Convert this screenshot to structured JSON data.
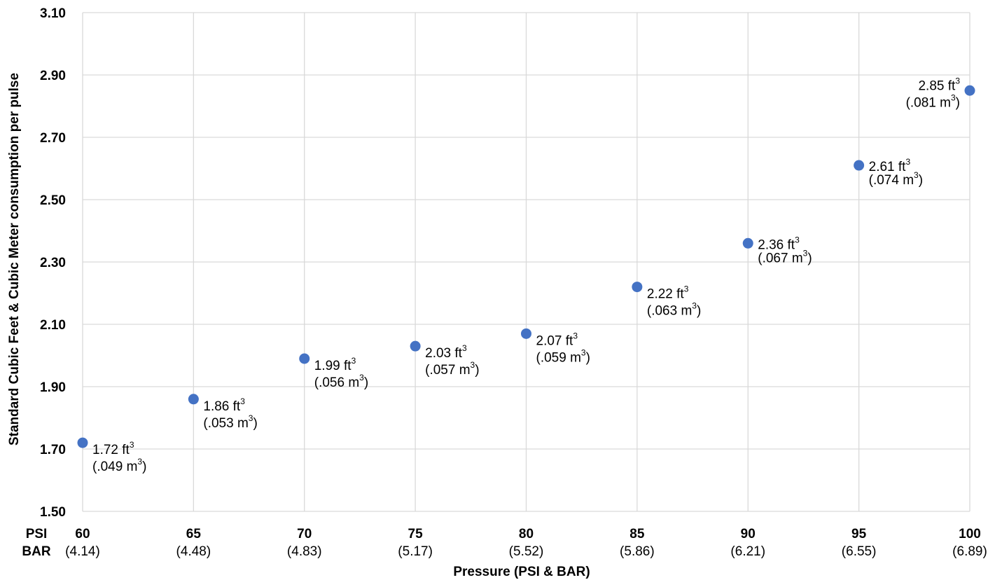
{
  "chart_data": {
    "type": "scatter",
    "xlabel": "Pressure (PSI & BAR)",
    "ylabel": "Standard Cubic Feet & Cubic Meter consumption per pulse",
    "ylim": [
      1.5,
      3.1
    ],
    "xlim": [
      60,
      100
    ],
    "grid": true,
    "marker_color": "#4472C4",
    "y_ticks": [
      "3.10",
      "2.90",
      "2.70",
      "2.50",
      "2.30",
      "2.10",
      "1.90",
      "1.70",
      "1.50"
    ],
    "x_row_labels": {
      "psi": "PSI",
      "bar": "BAR"
    },
    "x_ticks": [
      {
        "psi": "60",
        "bar": "(4.14)"
      },
      {
        "psi": "65",
        "bar": "(4.48)"
      },
      {
        "psi": "70",
        "bar": "(4.83)"
      },
      {
        "psi": "75",
        "bar": "(5.17)"
      },
      {
        "psi": "80",
        "bar": "(5.52)"
      },
      {
        "psi": "85",
        "bar": "(5.86)"
      },
      {
        "psi": "90",
        "bar": "(6.21)"
      },
      {
        "psi": "95",
        "bar": "(6.55)"
      },
      {
        "psi": "100",
        "bar": "(6.89)"
      }
    ],
    "points": [
      {
        "x": 60,
        "y": 1.72,
        "label_ft": "1.72 ft",
        "label_m": "(.049 m",
        "close": ")"
      },
      {
        "x": 65,
        "y": 1.86,
        "label_ft": "1.86 ft",
        "label_m": "(.053 m",
        "close": ")"
      },
      {
        "x": 70,
        "y": 1.99,
        "label_ft": "1.99 ft",
        "label_m": "(.056 m",
        "close": ")"
      },
      {
        "x": 75,
        "y": 2.03,
        "label_ft": "2.03 ft",
        "label_m": "(.057 m",
        "close": ")"
      },
      {
        "x": 80,
        "y": 2.07,
        "label_ft": "2.07 ft",
        "label_m": "(.059 m",
        "close": ")"
      },
      {
        "x": 85,
        "y": 2.22,
        "label_ft": "2.22 ft",
        "label_m": "(.063 m",
        "close": ")"
      },
      {
        "x": 90,
        "y": 2.36,
        "label_ft": "2.36 ft",
        "label_m": "(.067 m",
        "close": ")"
      },
      {
        "x": 95,
        "y": 2.61,
        "label_ft": "2.61 ft",
        "label_m": "(.074 m",
        "close": ")"
      },
      {
        "x": 100,
        "y": 2.85,
        "label_ft": "2.85 ft",
        "label_m": "(.081 m",
        "close": ")"
      }
    ],
    "superscript": "3"
  }
}
